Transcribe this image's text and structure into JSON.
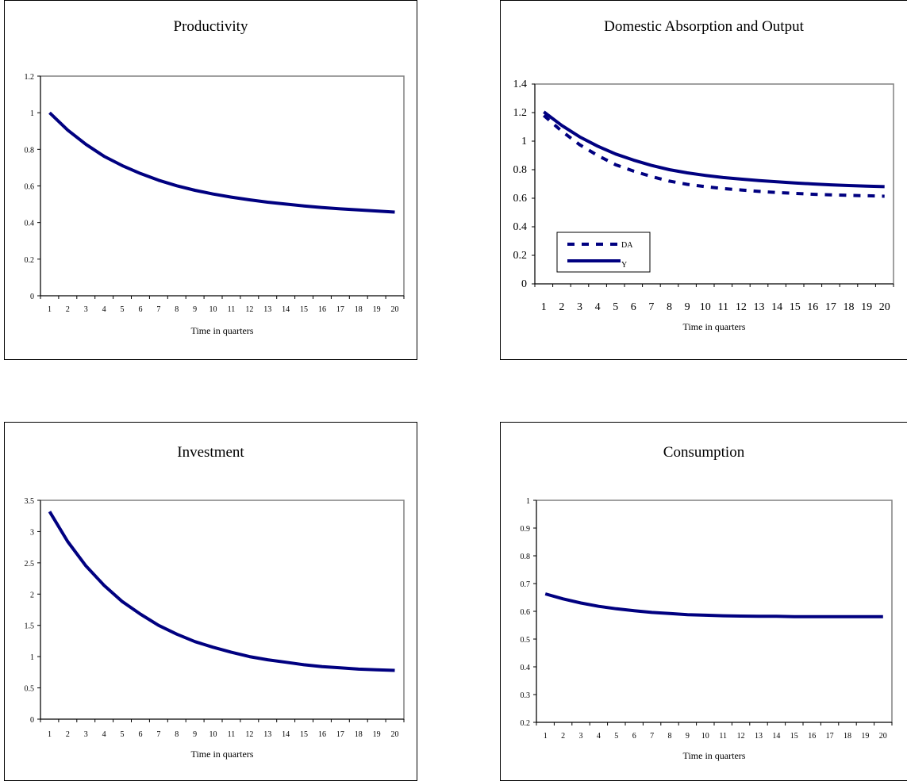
{
  "line_color": "#000080",
  "chart_data": [
    {
      "type": "line",
      "title": "Productivity",
      "xlabel": "Time in quarters",
      "ylabel": "",
      "x": [
        1,
        2,
        3,
        4,
        5,
        6,
        7,
        8,
        9,
        10,
        11,
        12,
        13,
        14,
        15,
        16,
        17,
        18,
        19,
        20
      ],
      "ylim": [
        0,
        1.2
      ],
      "yticks": [
        "0",
        "0.2",
        "0.4",
        "0.6",
        "0.8",
        "1",
        "1.2"
      ],
      "series": [
        {
          "values": [
            1.0,
            0.905,
            0.827,
            0.762,
            0.711,
            0.668,
            0.631,
            0.601,
            0.576,
            0.556,
            0.539,
            0.524,
            0.511,
            0.501,
            0.491,
            0.482,
            0.475,
            0.469,
            0.463,
            0.457
          ],
          "style": "solid"
        }
      ],
      "legend": null
    },
    {
      "type": "line",
      "title": "Domestic Absorption and Output",
      "xlabel": "Time in quarters",
      "ylabel": "",
      "x": [
        1,
        2,
        3,
        4,
        5,
        6,
        7,
        8,
        9,
        10,
        11,
        12,
        13,
        14,
        15,
        16,
        17,
        18,
        19,
        20
      ],
      "ylim": [
        0,
        1.4
      ],
      "yticks": [
        "0",
        "0.2",
        "0.4",
        "0.6",
        "0.8",
        "1",
        "1.2",
        "1.4"
      ],
      "series": [
        {
          "name": "DA",
          "values": [
            1.18,
            1.07,
            0.975,
            0.9,
            0.835,
            0.79,
            0.752,
            0.72,
            0.697,
            0.681,
            0.668,
            0.658,
            0.648,
            0.64,
            0.634,
            0.628,
            0.624,
            0.62,
            0.617,
            0.614
          ],
          "style": "dashed"
        },
        {
          "name": "Y",
          "values": [
            1.205,
            1.11,
            1.03,
            0.965,
            0.91,
            0.867,
            0.83,
            0.8,
            0.778,
            0.76,
            0.745,
            0.734,
            0.724,
            0.715,
            0.707,
            0.7,
            0.694,
            0.689,
            0.685,
            0.681
          ],
          "style": "solid"
        }
      ],
      "legend": "bottom-left"
    },
    {
      "type": "line",
      "title": "Investment",
      "xlabel": "Time in quarters",
      "ylabel": "",
      "x": [
        1,
        2,
        3,
        4,
        5,
        6,
        7,
        8,
        9,
        10,
        11,
        12,
        13,
        14,
        15,
        16,
        17,
        18,
        19,
        20
      ],
      "ylim": [
        0,
        3.5
      ],
      "yticks": [
        "0",
        "0.5",
        "1",
        "1.5",
        "2",
        "2.5",
        "3",
        "3.5"
      ],
      "series": [
        {
          "values": [
            3.32,
            2.84,
            2.45,
            2.14,
            1.88,
            1.68,
            1.5,
            1.36,
            1.24,
            1.15,
            1.07,
            1.0,
            0.95,
            0.91,
            0.87,
            0.84,
            0.82,
            0.8,
            0.79,
            0.78
          ],
          "style": "solid"
        }
      ],
      "legend": null
    },
    {
      "type": "line",
      "title": "Consumption",
      "xlabel": "Time in quarters",
      "ylabel": "",
      "x": [
        1,
        2,
        3,
        4,
        5,
        6,
        7,
        8,
        9,
        10,
        11,
        12,
        13,
        14,
        15,
        16,
        17,
        18,
        19,
        20
      ],
      "ylim": [
        0.2,
        1
      ],
      "yticks": [
        "0.2",
        "0.3",
        "0.4",
        "0.5",
        "0.6",
        "0.7",
        "0.8",
        "0.9",
        "1"
      ],
      "series": [
        {
          "values": [
            0.663,
            0.645,
            0.63,
            0.618,
            0.609,
            0.602,
            0.596,
            0.592,
            0.588,
            0.586,
            0.584,
            0.583,
            0.582,
            0.582,
            0.581,
            0.581,
            0.581,
            0.581,
            0.581,
            0.581
          ],
          "style": "solid"
        }
      ],
      "legend": null
    }
  ]
}
